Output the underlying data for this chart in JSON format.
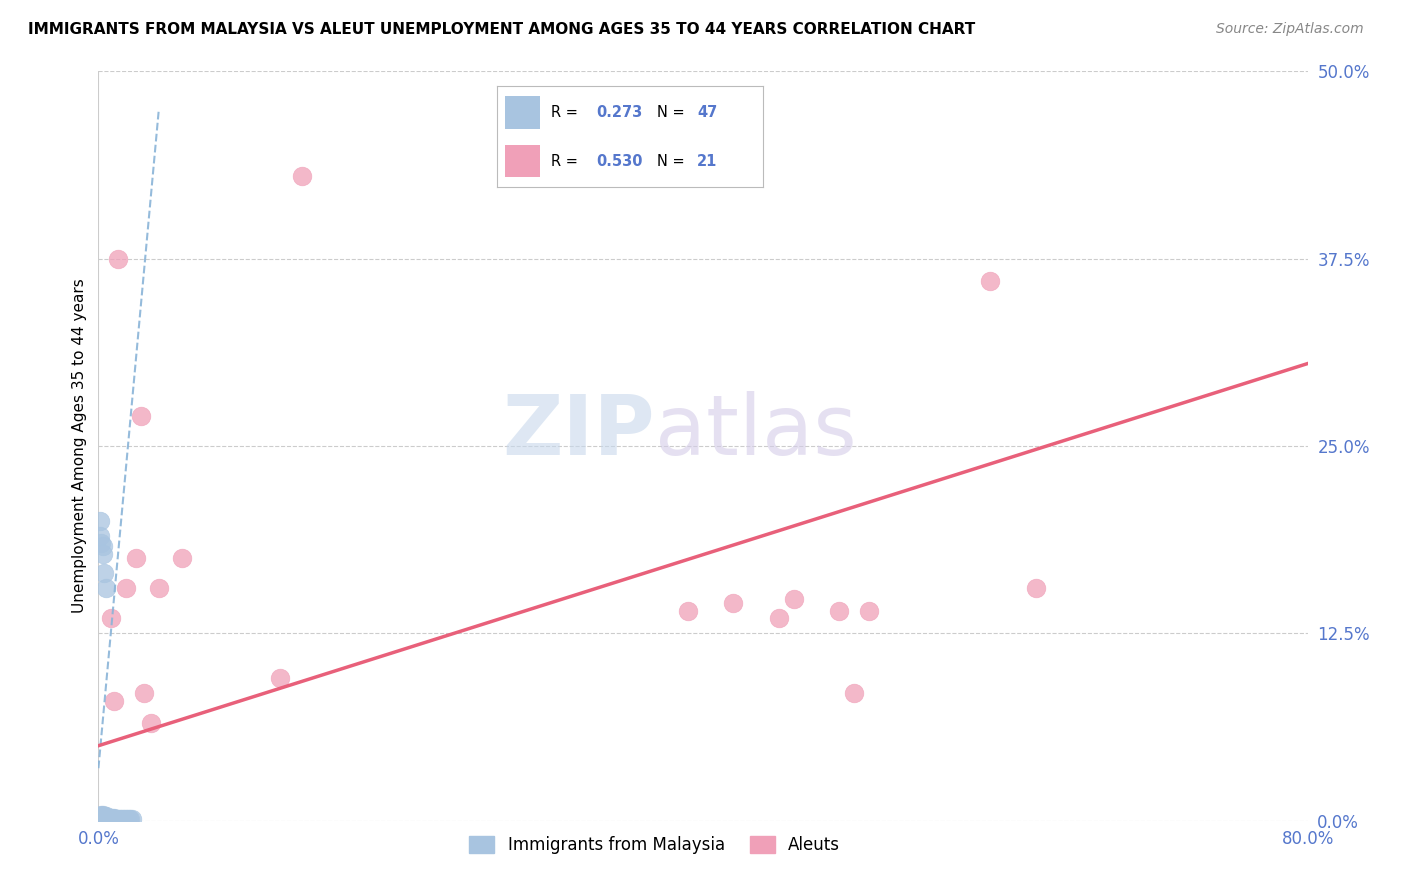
{
  "title": "IMMIGRANTS FROM MALAYSIA VS ALEUT UNEMPLOYMENT AMONG AGES 35 TO 44 YEARS CORRELATION CHART",
  "source": "Source: ZipAtlas.com",
  "ylabel_label": "Unemployment Among Ages 35 to 44 years",
  "xlim": [
    0.0,
    0.8
  ],
  "ylim": [
    0.0,
    0.5
  ],
  "yticks": [
    0.0,
    0.125,
    0.25,
    0.375,
    0.5
  ],
  "ytick_labels": [
    "0.0%",
    "12.5%",
    "25.0%",
    "37.5%",
    "50.0%"
  ],
  "xtick_labels": [
    "0.0%",
    "80.0%"
  ],
  "xticks": [
    0.0,
    0.8
  ],
  "blue_color": "#a8c4e0",
  "pink_color": "#f0a0b8",
  "blue_line_color": "#8ab4d8",
  "pink_line_color": "#e8607a",
  "tick_color": "#5577cc",
  "watermark_zip_color": "#c8d8ec",
  "watermark_atlas_color": "#d4cce8",
  "blue_scatter_x": [
    0.001,
    0.001,
    0.001,
    0.001,
    0.002,
    0.002,
    0.002,
    0.002,
    0.003,
    0.003,
    0.003,
    0.003,
    0.004,
    0.004,
    0.004,
    0.005,
    0.005,
    0.005,
    0.006,
    0.006,
    0.007,
    0.007,
    0.008,
    0.008,
    0.009,
    0.009,
    0.01,
    0.01,
    0.011,
    0.012,
    0.013,
    0.014,
    0.015,
    0.016,
    0.017,
    0.018,
    0.019,
    0.02,
    0.021,
    0.022,
    0.001,
    0.001,
    0.002,
    0.003,
    0.003,
    0.004,
    0.005
  ],
  "blue_scatter_y": [
    0.003,
    0.003,
    0.002,
    0.001,
    0.004,
    0.003,
    0.002,
    0.001,
    0.004,
    0.003,
    0.002,
    0.001,
    0.003,
    0.002,
    0.001,
    0.003,
    0.002,
    0.001,
    0.002,
    0.001,
    0.002,
    0.001,
    0.002,
    0.001,
    0.002,
    0.001,
    0.002,
    0.001,
    0.001,
    0.001,
    0.001,
    0.001,
    0.001,
    0.001,
    0.001,
    0.001,
    0.001,
    0.001,
    0.001,
    0.001,
    0.2,
    0.19,
    0.185,
    0.183,
    0.178,
    0.165,
    0.155
  ],
  "pink_scatter_x": [
    0.008,
    0.01,
    0.013,
    0.018,
    0.025,
    0.028,
    0.03,
    0.035,
    0.04,
    0.055,
    0.12,
    0.135,
    0.39,
    0.42,
    0.45,
    0.46,
    0.49,
    0.5,
    0.51,
    0.59,
    0.62
  ],
  "pink_scatter_y": [
    0.135,
    0.08,
    0.375,
    0.155,
    0.175,
    0.27,
    0.085,
    0.065,
    0.155,
    0.175,
    0.095,
    0.43,
    0.14,
    0.145,
    0.135,
    0.148,
    0.14,
    0.085,
    0.14,
    0.36,
    0.155
  ],
  "blue_line_start_x": 0.0,
  "blue_line_start_y": 0.035,
  "blue_line_end_x": 0.04,
  "blue_line_end_y": 0.475,
  "pink_line_start_x": 0.0,
  "pink_line_start_y": 0.05,
  "pink_line_end_x": 0.8,
  "pink_line_end_y": 0.305,
  "legend_blue_label": "Immigrants from Malaysia",
  "legend_pink_label": "Aleuts"
}
